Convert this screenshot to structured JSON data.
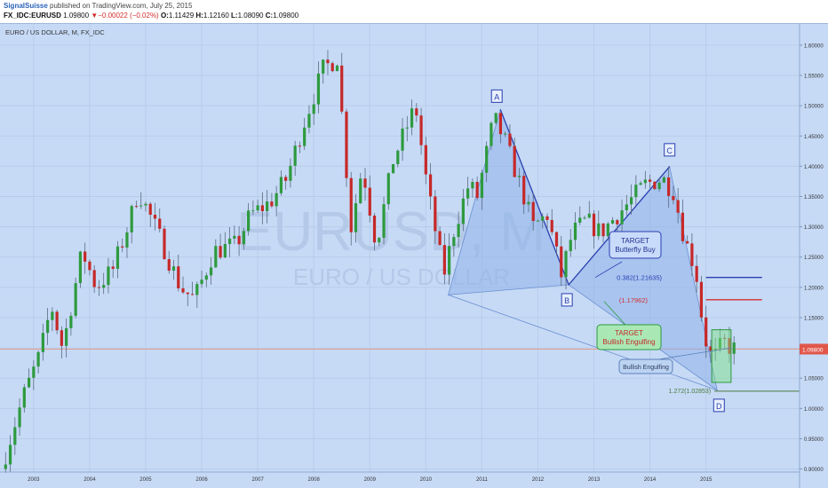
{
  "header": {
    "author": "SignalSuisse",
    "published_text": "published on TradingView.com, July 25, 2015",
    "symbol": "FX_IDC:EURUSD",
    "last": "1.09800",
    "change_arrow": "▼",
    "change": "−0.00022 (−0.02%)",
    "o_label": "O:",
    "o": "1.11429",
    "h_label": "H:",
    "h": "1.12160",
    "l_label": "L:",
    "l": "1.08090",
    "c_label": "C:",
    "c": "1.09800"
  },
  "chart_title": "EURO / US DOLLAR, M, FX_IDC",
  "watermark": {
    "symbol": "EURUSD, M",
    "name": "EURO / US DOLLAR"
  },
  "price_tag": "1.09800",
  "pattern_points": {
    "A": {
      "label": "A",
      "date": "2011.33",
      "price": 1.4938
    },
    "B": {
      "label": "B",
      "date": "2012.55",
      "price": 1.2043
    },
    "C": {
      "label": "C",
      "date": "2014.35",
      "price": 1.3993
    },
    "D": {
      "label": "D",
      "date": "2015.2",
      "price": 1.03
    },
    "X": {
      "date": "2010.4",
      "price": 1.1876
    }
  },
  "levels": [
    {
      "label": "0.382(1.21635)",
      "price": 1.21635,
      "from": "2015.0",
      "to": "2016.0",
      "color": "#2a3fb0"
    },
    {
      "label": "(1.17962)",
      "price": 1.17962,
      "from": "2015.0",
      "to": "2016.0",
      "color": "#d32f2f"
    },
    {
      "label": "1.272(1.02853)",
      "price": 1.02853,
      "from": "2015.15",
      "to": "2017.6",
      "color": "#4a7a3a"
    }
  ],
  "callouts": {
    "target_butterfly_1": "TARGET",
    "target_butterfly_2": "Butterfly Buy",
    "target_engulfing_1": "TARGET",
    "target_engulfing_2": "Bullish Engulfing",
    "bullish_engulfing": "Bullish Engulfing"
  },
  "colors": {
    "up": "#2e9a3e",
    "down": "#c62828",
    "background": "#c6daf6",
    "pattern": "#2a3fb0"
  },
  "chart_data": {
    "type": "candlestick",
    "title": "EURO / US DOLLAR, M, FX_IDC",
    "x_axis": {
      "ticks": [
        "2003",
        "2004",
        "2005",
        "2006",
        "2007",
        "2008",
        "2009",
        "2010",
        "2011",
        "2012",
        "2013",
        "2014",
        "2015"
      ],
      "range": [
        2002.4,
        2016.67
      ]
    },
    "y_axis": {
      "ticks": [
        "0.90000",
        "0.95000",
        "1.00000",
        "1.05000",
        "1.10000",
        "1.15000",
        "1.20000",
        "1.25000",
        "1.30000",
        "1.35000",
        "1.40000",
        "1.45000",
        "1.50000",
        "1.55000",
        "1.60000"
      ],
      "range": [
        0.895,
        1.635
      ]
    },
    "series_points": [
      [
        2002.5,
        0.9
      ],
      [
        2002.9,
        1.02
      ],
      [
        2003.2,
        1.09
      ],
      [
        2003.4,
        1.17
      ],
      [
        2003.6,
        1.1
      ],
      [
        2003.95,
        1.26
      ],
      [
        2004.2,
        1.2
      ],
      [
        2004.5,
        1.23
      ],
      [
        2004.8,
        1.31
      ],
      [
        2004.95,
        1.36
      ],
      [
        2005.3,
        1.29
      ],
      [
        2005.7,
        1.2
      ],
      [
        2005.95,
        1.18
      ],
      [
        2006.3,
        1.26
      ],
      [
        2006.7,
        1.27
      ],
      [
        2006.95,
        1.32
      ],
      [
        2007.3,
        1.34
      ],
      [
        2007.6,
        1.38
      ],
      [
        2007.9,
        1.47
      ],
      [
        2008.25,
        1.56
      ],
      [
        2008.5,
        1.58
      ],
      [
        2008.75,
        1.3
      ],
      [
        2008.95,
        1.4
      ],
      [
        2009.2,
        1.27
      ],
      [
        2009.5,
        1.41
      ],
      [
        2009.9,
        1.5
      ],
      [
        2010.1,
        1.37
      ],
      [
        2010.4,
        1.22
      ],
      [
        2010.6,
        1.3
      ],
      [
        2010.85,
        1.37
      ],
      [
        2011.0,
        1.35
      ],
      [
        2011.3,
        1.48
      ],
      [
        2011.5,
        1.44
      ],
      [
        2011.8,
        1.36
      ],
      [
        2012.0,
        1.3
      ],
      [
        2012.25,
        1.32
      ],
      [
        2012.5,
        1.22
      ],
      [
        2012.7,
        1.29
      ],
      [
        2012.95,
        1.31
      ],
      [
        2013.2,
        1.29
      ],
      [
        2013.5,
        1.32
      ],
      [
        2013.8,
        1.35
      ],
      [
        2014.0,
        1.37
      ],
      [
        2014.3,
        1.38
      ],
      [
        2014.5,
        1.36
      ],
      [
        2014.7,
        1.28
      ],
      [
        2014.9,
        1.23
      ],
      [
        2015.05,
        1.12
      ],
      [
        2015.2,
        1.08
      ],
      [
        2015.4,
        1.11
      ],
      [
        2015.55,
        1.098
      ]
    ]
  }
}
